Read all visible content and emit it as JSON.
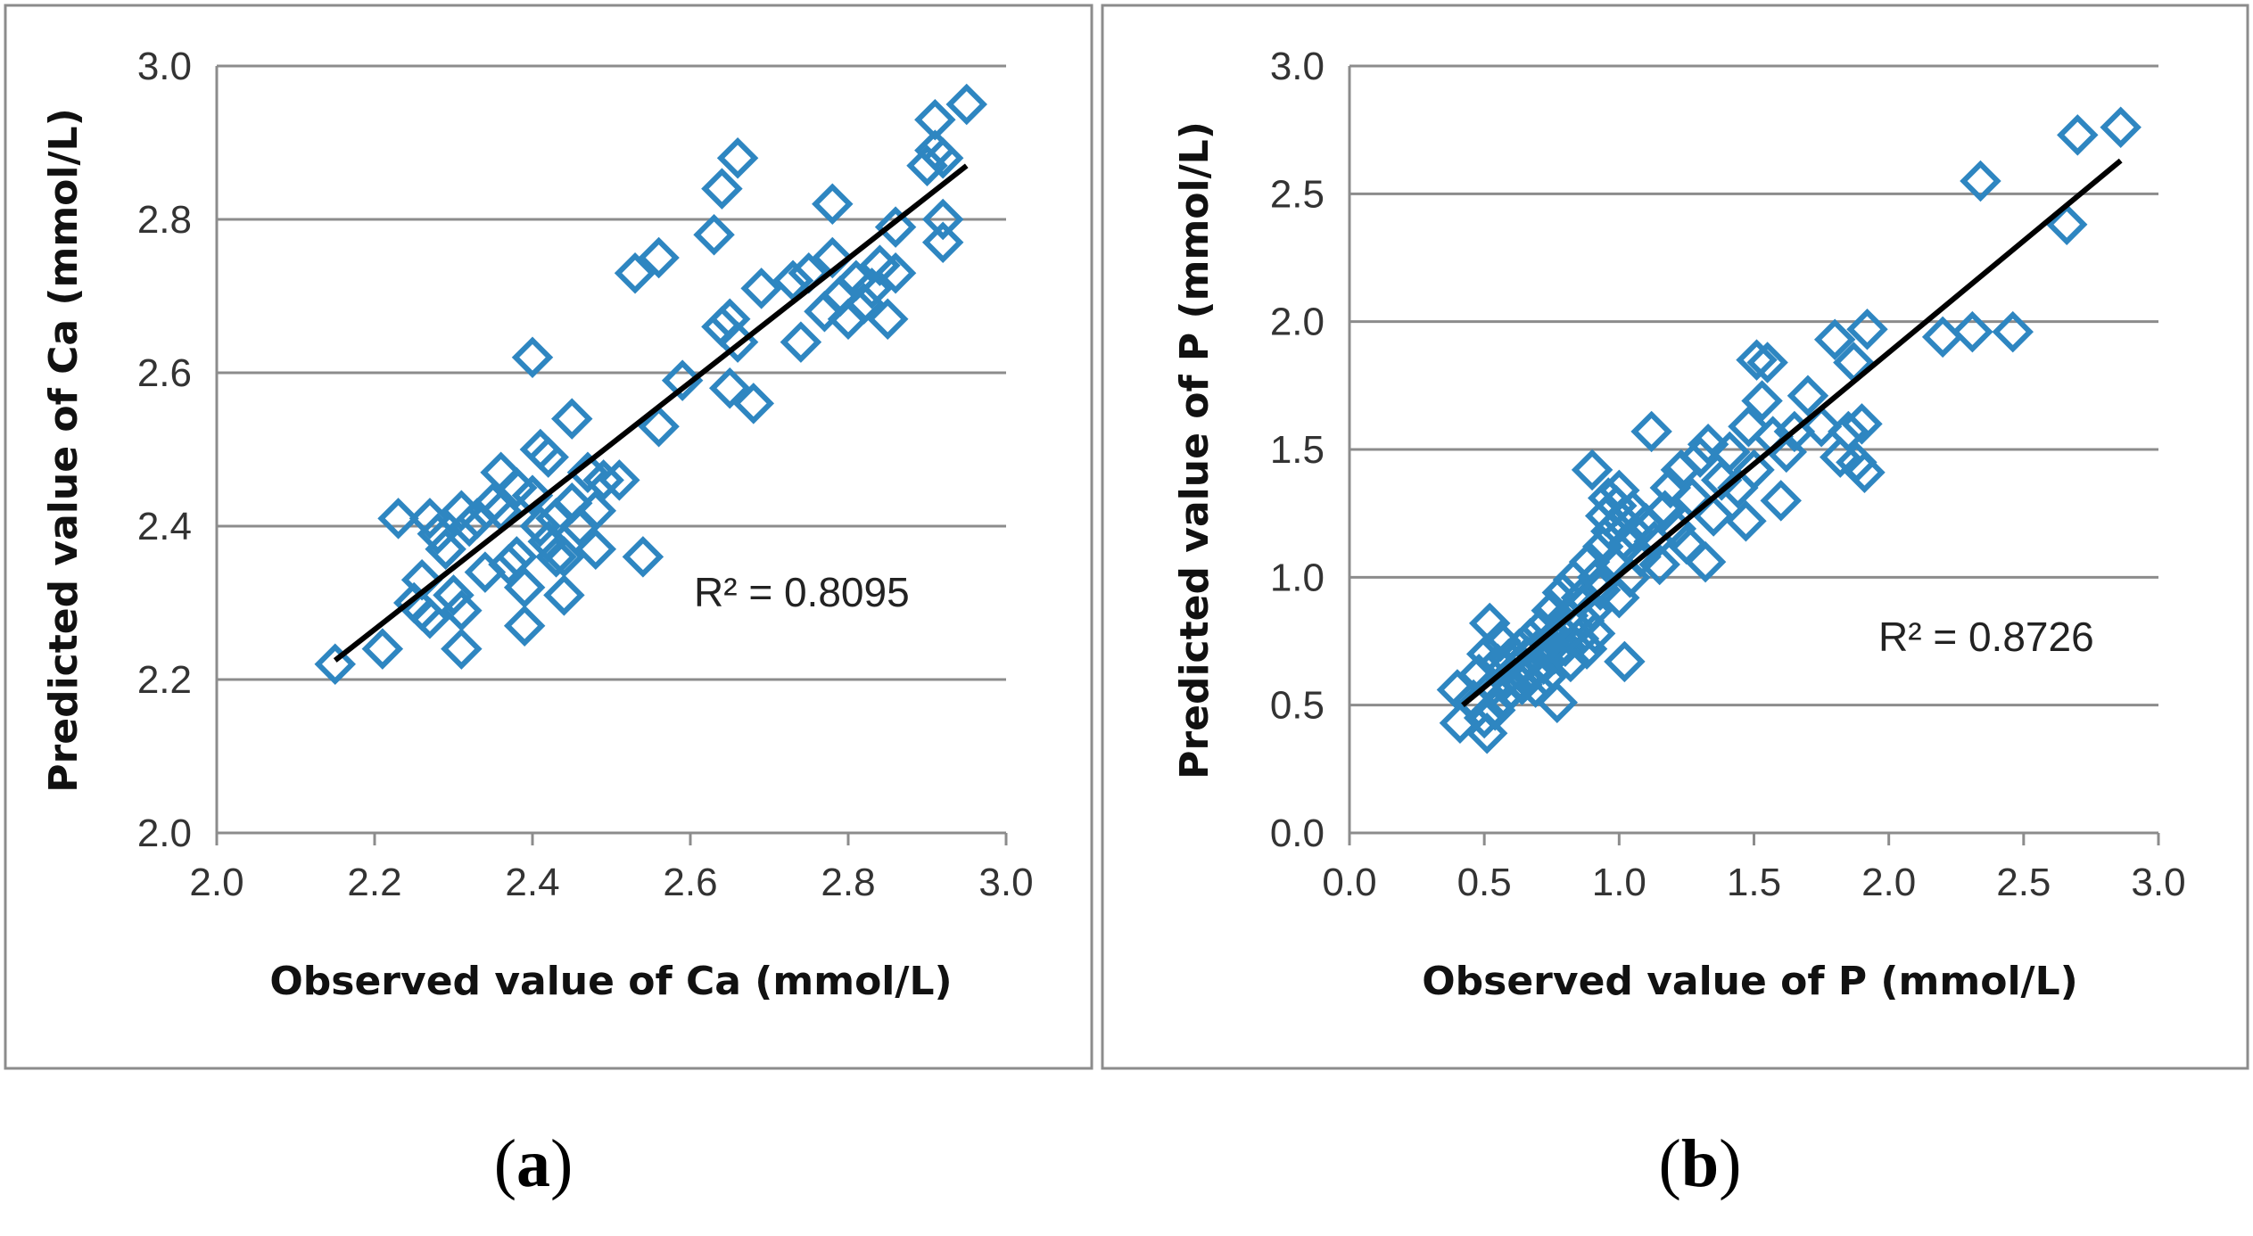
{
  "colors": {
    "marker": "#2e86c1",
    "fit_line": "#000000",
    "grid": "#8c8c8c"
  },
  "chart_data": [
    {
      "type": "scatter",
      "panel_label": "a",
      "title": "",
      "xlabel": "Observed value of Ca (mmol/L)",
      "ylabel": "Predicted value of Ca (mmol/L)",
      "xlim": [
        2.0,
        3.0
      ],
      "ylim": [
        2.0,
        3.0
      ],
      "xticks": [
        "2.0",
        "2.2",
        "2.4",
        "2.6",
        "2.8",
        "3.0"
      ],
      "yticks": [
        "2.0",
        "2.2",
        "2.4",
        "2.6",
        "2.8",
        "3.0"
      ],
      "grid": "horizontal",
      "marker": "open-diamond",
      "r2_label": "R² = 0.8095",
      "trendline": {
        "x": [
          2.15,
          2.95
        ],
        "y": [
          2.225,
          2.87
        ]
      },
      "points": [
        [
          2.15,
          2.22
        ],
        [
          2.21,
          2.24
        ],
        [
          2.23,
          2.41
        ],
        [
          2.25,
          2.3
        ],
        [
          2.26,
          2.29
        ],
        [
          2.26,
          2.33
        ],
        [
          2.27,
          2.41
        ],
        [
          2.27,
          2.28
        ],
        [
          2.28,
          2.39
        ],
        [
          2.29,
          2.37
        ],
        [
          2.3,
          2.31
        ],
        [
          2.31,
          2.24
        ],
        [
          2.31,
          2.29
        ],
        [
          2.31,
          2.42
        ],
        [
          2.32,
          2.4
        ],
        [
          2.33,
          2.41
        ],
        [
          2.34,
          2.34
        ],
        [
          2.35,
          2.43
        ],
        [
          2.36,
          2.47
        ],
        [
          2.36,
          2.42
        ],
        [
          2.37,
          2.35
        ],
        [
          2.38,
          2.45
        ],
        [
          2.38,
          2.36
        ],
        [
          2.39,
          2.27
        ],
        [
          2.39,
          2.32
        ],
        [
          2.4,
          2.62
        ],
        [
          2.4,
          2.44
        ],
        [
          2.41,
          2.4
        ],
        [
          2.41,
          2.5
        ],
        [
          2.42,
          2.38
        ],
        [
          2.42,
          2.49
        ],
        [
          2.43,
          2.41
        ],
        [
          2.43,
          2.36
        ],
        [
          2.44,
          2.31
        ],
        [
          2.44,
          2.36
        ],
        [
          2.45,
          2.54
        ],
        [
          2.45,
          2.43
        ],
        [
          2.46,
          2.4
        ],
        [
          2.47,
          2.47
        ],
        [
          2.48,
          2.37
        ],
        [
          2.48,
          2.42
        ],
        [
          2.49,
          2.46
        ],
        [
          2.51,
          2.46
        ],
        [
          2.53,
          2.73
        ],
        [
          2.54,
          2.36
        ],
        [
          2.56,
          2.75
        ],
        [
          2.56,
          2.53
        ],
        [
          2.59,
          2.59
        ],
        [
          2.63,
          2.78
        ],
        [
          2.64,
          2.84
        ],
        [
          2.64,
          2.66
        ],
        [
          2.65,
          2.58
        ],
        [
          2.65,
          2.67
        ],
        [
          2.66,
          2.88
        ],
        [
          2.66,
          2.64
        ],
        [
          2.68,
          2.56
        ],
        [
          2.69,
          2.71
        ],
        [
          2.73,
          2.72
        ],
        [
          2.74,
          2.64
        ],
        [
          2.75,
          2.73
        ],
        [
          2.77,
          2.68
        ],
        [
          2.78,
          2.82
        ],
        [
          2.78,
          2.75
        ],
        [
          2.79,
          2.7
        ],
        [
          2.8,
          2.67
        ],
        [
          2.81,
          2.72
        ],
        [
          2.82,
          2.69
        ],
        [
          2.83,
          2.71
        ],
        [
          2.84,
          2.74
        ],
        [
          2.85,
          2.67
        ],
        [
          2.86,
          2.73
        ],
        [
          2.86,
          2.79
        ],
        [
          2.9,
          2.87
        ],
        [
          2.91,
          2.93
        ],
        [
          2.91,
          2.89
        ],
        [
          2.92,
          2.77
        ],
        [
          2.92,
          2.8
        ],
        [
          2.92,
          2.88
        ],
        [
          2.95,
          2.95
        ]
      ]
    },
    {
      "type": "scatter",
      "panel_label": "b",
      "title": "",
      "xlabel": "Observed value of P (mmol/L)",
      "ylabel": "Predicted value of P (mmol/L)",
      "xlim": [
        0.0,
        3.0
      ],
      "ylim": [
        0.0,
        3.0
      ],
      "xticks": [
        "0.0",
        "0.5",
        "1.0",
        "1.5",
        "2.0",
        "2.5",
        "3.0"
      ],
      "yticks": [
        "0.0",
        "0.5",
        "1.0",
        "1.5",
        "2.0",
        "2.5",
        "3.0"
      ],
      "grid": "horizontal",
      "marker": "open-diamond",
      "r2_label": "R² = 0.8726",
      "trendline": {
        "x": [
          0.42,
          2.86
        ],
        "y": [
          0.5,
          2.63
        ]
      },
      "points": [
        [
          0.4,
          0.56
        ],
        [
          0.41,
          0.43
        ],
        [
          0.46,
          0.52
        ],
        [
          0.48,
          0.62
        ],
        [
          0.5,
          0.45
        ],
        [
          0.51,
          0.7
        ],
        [
          0.51,
          0.39
        ],
        [
          0.52,
          0.82
        ],
        [
          0.53,
          0.57
        ],
        [
          0.54,
          0.48
        ],
        [
          0.55,
          0.66
        ],
        [
          0.56,
          0.75
        ],
        [
          0.57,
          0.53
        ],
        [
          0.58,
          0.6
        ],
        [
          0.59,
          0.68
        ],
        [
          0.6,
          0.56
        ],
        [
          0.62,
          0.64
        ],
        [
          0.63,
          0.72
        ],
        [
          0.64,
          0.58
        ],
        [
          0.65,
          0.61
        ],
        [
          0.66,
          0.69
        ],
        [
          0.67,
          0.76
        ],
        [
          0.68,
          0.63
        ],
        [
          0.69,
          0.57
        ],
        [
          0.7,
          0.72
        ],
        [
          0.71,
          0.8
        ],
        [
          0.72,
          0.66
        ],
        [
          0.73,
          0.61
        ],
        [
          0.74,
          0.74
        ],
        [
          0.75,
          0.87
        ],
        [
          0.76,
          0.7
        ],
        [
          0.77,
          0.51
        ],
        [
          0.78,
          0.79
        ],
        [
          0.79,
          0.94
        ],
        [
          0.8,
          0.73
        ],
        [
          0.81,
          0.85
        ],
        [
          0.82,
          0.67
        ],
        [
          0.83,
          0.99
        ],
        [
          0.84,
          0.8
        ],
        [
          0.85,
          0.76
        ],
        [
          0.86,
          0.92
        ],
        [
          0.87,
          0.83
        ],
        [
          0.88,
          0.72
        ],
        [
          0.89,
          1.06
        ],
        [
          0.9,
          0.87
        ],
        [
          0.9,
          1.42
        ],
        [
          0.91,
          0.78
        ],
        [
          0.92,
          1.0
        ],
        [
          0.93,
          0.95
        ],
        [
          0.94,
          1.12
        ],
        [
          0.95,
          1.24
        ],
        [
          0.96,
          1.31
        ],
        [
          0.97,
          1.18
        ],
        [
          0.98,
          1.05
        ],
        [
          0.99,
          1.28
        ],
        [
          1.0,
          0.92
        ],
        [
          1.0,
          1.34
        ],
        [
          1.01,
          1.22
        ],
        [
          1.02,
          0.67
        ],
        [
          1.03,
          1.13
        ],
        [
          1.04,
          1.0
        ],
        [
          1.05,
          1.26
        ],
        [
          1.06,
          1.17
        ],
        [
          1.08,
          1.08
        ],
        [
          1.1,
          1.21
        ],
        [
          1.12,
          1.57
        ],
        [
          1.13,
          1.14
        ],
        [
          1.15,
          1.05
        ],
        [
          1.17,
          1.26
        ],
        [
          1.19,
          1.35
        ],
        [
          1.21,
          1.19
        ],
        [
          1.23,
          1.42
        ],
        [
          1.25,
          1.13
        ],
        [
          1.27,
          1.31
        ],
        [
          1.3,
          1.47
        ],
        [
          1.32,
          1.06
        ],
        [
          1.33,
          1.52
        ],
        [
          1.35,
          1.24
        ],
        [
          1.38,
          1.38
        ],
        [
          1.41,
          1.49
        ],
        [
          1.44,
          1.35
        ],
        [
          1.47,
          1.22
        ],
        [
          1.48,
          1.59
        ],
        [
          1.5,
          1.42
        ],
        [
          1.51,
          1.85
        ],
        [
          1.53,
          1.69
        ],
        [
          1.55,
          1.84
        ],
        [
          1.57,
          1.55
        ],
        [
          1.6,
          1.3
        ],
        [
          1.62,
          1.49
        ],
        [
          1.65,
          1.57
        ],
        [
          1.7,
          1.71
        ],
        [
          1.75,
          1.59
        ],
        [
          1.8,
          1.93
        ],
        [
          1.82,
          1.47
        ],
        [
          1.85,
          1.57
        ],
        [
          1.87,
          1.84
        ],
        [
          1.88,
          1.45
        ],
        [
          1.9,
          1.6
        ],
        [
          1.91,
          1.41
        ],
        [
          1.92,
          1.97
        ],
        [
          2.2,
          1.94
        ],
        [
          2.31,
          1.96
        ],
        [
          2.34,
          2.55
        ],
        [
          2.46,
          1.96
        ],
        [
          2.66,
          2.38
        ],
        [
          2.7,
          2.73
        ],
        [
          2.86,
          2.76
        ]
      ]
    }
  ]
}
